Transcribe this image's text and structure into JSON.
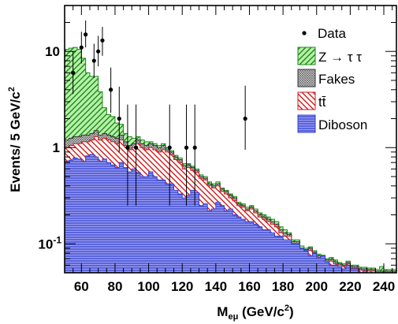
{
  "chart_data": {
    "type": "area",
    "stacked": true,
    "histogram": true,
    "xlabel": {
      "main": "M",
      "sub": "eμ",
      "rest": " (GeV/c",
      "sup": "2",
      "close": ")"
    },
    "ylabel": {
      "main": "Events/ 5 GeV/c",
      "sup": "2"
    },
    "xlim": [
      50,
      247.5
    ],
    "ylim": [
      0.05,
      30
    ],
    "y_scale": "log",
    "x_ticks": [
      60,
      80,
      100,
      120,
      140,
      160,
      180,
      200,
      220,
      240
    ],
    "y_ticks": [
      {
        "value": 10,
        "label": "10"
      },
      {
        "value": 1,
        "label": "1"
      },
      {
        "value": 0.1,
        "label": "10",
        "sup": "-1"
      }
    ],
    "legend_position": "top-right",
    "bin_edges": [
      50,
      52.5,
      55,
      57.5,
      60,
      62.5,
      65,
      67.5,
      70,
      72.5,
      75,
      77.5,
      80,
      82.5,
      85,
      87.5,
      90,
      92.5,
      95,
      97.5,
      100,
      102.5,
      105,
      107.5,
      110,
      112.5,
      115,
      117.5,
      120,
      122.5,
      125,
      127.5,
      130,
      132.5,
      135,
      137.5,
      140,
      142.5,
      145,
      147.5,
      150,
      152.5,
      155,
      157.5,
      160,
      162.5,
      165,
      167.5,
      170,
      172.5,
      175,
      177.5,
      180,
      182.5,
      185,
      187.5,
      190,
      192.5,
      195,
      197.5,
      200,
      202.5,
      205,
      207.5,
      210,
      212.5,
      215,
      217.5,
      220,
      222.5,
      225,
      227.5,
      230,
      232.5,
      235,
      237.5,
      240,
      242.5,
      245,
      247.5
    ],
    "series": [
      {
        "name": "Diboson",
        "color": "#2f3fd0",
        "fill": "#9a9cf0",
        "pattern": "horizontal",
        "totals": [
          0.72,
          0.74,
          0.78,
          0.76,
          0.72,
          0.82,
          0.85,
          0.8,
          0.72,
          0.76,
          0.7,
          0.66,
          0.62,
          0.7,
          0.62,
          0.56,
          0.6,
          0.55,
          0.5,
          0.5,
          0.56,
          0.5,
          0.46,
          0.46,
          0.42,
          0.42,
          0.36,
          0.33,
          0.3,
          0.32,
          0.36,
          0.34,
          0.25,
          0.26,
          0.22,
          0.23,
          0.27,
          0.25,
          0.22,
          0.23,
          0.2,
          0.19,
          0.18,
          0.17,
          0.17,
          0.16,
          0.15,
          0.14,
          0.14,
          0.13,
          0.12,
          0.12,
          0.11,
          0.11,
          0.1,
          0.1,
          0.09,
          0.085,
          0.075,
          0.08,
          0.07,
          0.075,
          0.065,
          0.06,
          0.06,
          0.058,
          0.055,
          0.06,
          0.055,
          0.055,
          0.05,
          0.052,
          0.05,
          0.05,
          0.05,
          0.05,
          0.05,
          0.05,
          0.05
        ]
      },
      {
        "name": "tt̄",
        "color": "#d01818",
        "fill": "#ffffff",
        "pattern": "diagonal-down",
        "totals": [
          1.0,
          1.05,
          1.1,
          1.1,
          1.15,
          1.15,
          1.2,
          1.3,
          1.2,
          1.25,
          1.2,
          1.15,
          1.1,
          1.2,
          1.05,
          0.95,
          1.0,
          1.1,
          1.0,
          0.95,
          1.0,
          0.95,
          0.9,
          0.95,
          0.9,
          0.85,
          0.75,
          0.7,
          0.6,
          0.62,
          0.58,
          0.55,
          0.48,
          0.46,
          0.4,
          0.38,
          0.4,
          0.35,
          0.33,
          0.3,
          0.28,
          0.25,
          0.24,
          0.22,
          0.23,
          0.21,
          0.19,
          0.18,
          0.17,
          0.16,
          0.15,
          0.13,
          0.12,
          0.12,
          0.1,
          0.1,
          0.085,
          0.082,
          0.085,
          0.078,
          0.072,
          0.07,
          0.065,
          0.066,
          0.062,
          0.06,
          0.058,
          0.062,
          0.056,
          0.056,
          0.053,
          0.053,
          0.052,
          0.052,
          0.05,
          0.05,
          0.05,
          0.05,
          0.05
        ]
      },
      {
        "name": "Fakes",
        "color": "#333333",
        "fill": "#c8c8c8",
        "pattern": "grid",
        "totals": [
          1.2,
          1.25,
          1.3,
          1.3,
          1.35,
          1.35,
          1.4,
          1.5,
          1.35,
          1.4,
          1.35,
          1.3,
          1.25,
          1.35,
          1.15,
          1.05,
          1.1,
          1.2,
          1.1,
          1.05,
          1.1,
          1.05,
          1.0,
          1.05,
          0.95,
          0.9,
          0.8,
          0.75,
          0.65,
          0.66,
          0.62,
          0.58,
          0.5,
          0.48,
          0.42,
          0.4,
          0.42,
          0.37,
          0.35,
          0.32,
          0.3,
          0.26,
          0.25,
          0.23,
          0.24,
          0.22,
          0.2,
          0.19,
          0.18,
          0.17,
          0.16,
          0.14,
          0.13,
          0.125,
          0.105,
          0.105,
          0.09,
          0.087,
          0.09,
          0.082,
          0.075,
          0.073,
          0.068,
          0.069,
          0.065,
          0.062,
          0.06,
          0.064,
          0.058,
          0.058,
          0.055,
          0.055,
          0.054,
          0.054,
          0.052,
          0.052,
          0.052,
          0.052,
          0.052
        ]
      },
      {
        "name": "Z → τ τ",
        "color": "#1a8a1a",
        "fill": "#b8f0a8",
        "pattern": "diagonal-up",
        "totals": [
          10.5,
          10.8,
          11.0,
          10.5,
          8.5,
          6.0,
          5.5,
          5.5,
          3.8,
          2.6,
          2.2,
          2.1,
          1.8,
          1.75,
          1.4,
          1.3,
          1.25,
          1.3,
          1.2,
          1.15,
          1.15,
          1.1,
          1.05,
          1.1,
          1.0,
          0.93,
          0.83,
          0.78,
          0.68,
          0.68,
          0.64,
          0.6,
          0.52,
          0.5,
          0.44,
          0.42,
          0.44,
          0.38,
          0.36,
          0.33,
          0.31,
          0.27,
          0.26,
          0.24,
          0.25,
          0.23,
          0.21,
          0.2,
          0.19,
          0.18,
          0.17,
          0.15,
          0.14,
          0.13,
          0.11,
          0.11,
          0.095,
          0.09,
          0.093,
          0.085,
          0.078,
          0.076,
          0.07,
          0.072,
          0.068,
          0.064,
          0.062,
          0.066,
          0.06,
          0.06,
          0.057,
          0.057,
          0.056,
          0.056,
          0.054,
          0.058,
          0.054,
          0.054,
          0.054
        ]
      }
    ],
    "data_series": {
      "name": "Data",
      "points": [
        {
          "x": 55,
          "y": 6,
          "lo": 3.6,
          "hi": 10
        },
        {
          "x": 60,
          "y": 11,
          "lo": 7.5,
          "hi": 16
        },
        {
          "x": 62.5,
          "y": 15,
          "lo": 11,
          "hi": 21
        },
        {
          "x": 67.5,
          "y": 8,
          "lo": 5.3,
          "hi": 12
        },
        {
          "x": 70,
          "y": 10,
          "lo": 7,
          "hi": 14.5
        },
        {
          "x": 72.5,
          "y": 13,
          "lo": 9,
          "hi": 18
        },
        {
          "x": 77.5,
          "y": 4,
          "lo": 2.3,
          "hi": 6.8
        },
        {
          "x": 82.5,
          "y": 2,
          "lo": 0.9,
          "hi": 4.3
        },
        {
          "x": 87.5,
          "y": 1,
          "lo": 0.25,
          "hi": 2.8
        },
        {
          "x": 92.5,
          "y": 1,
          "lo": 0.25,
          "hi": 2.8
        },
        {
          "x": 112.5,
          "y": 1,
          "lo": 0.25,
          "hi": 2.8
        },
        {
          "x": 122.5,
          "y": 1,
          "lo": 0.25,
          "hi": 2.8
        },
        {
          "x": 127.5,
          "y": 1,
          "lo": 0.25,
          "hi": 2.8
        },
        {
          "x": 157.5,
          "y": 2,
          "lo": 0.95,
          "hi": 4.4
        }
      ]
    }
  }
}
